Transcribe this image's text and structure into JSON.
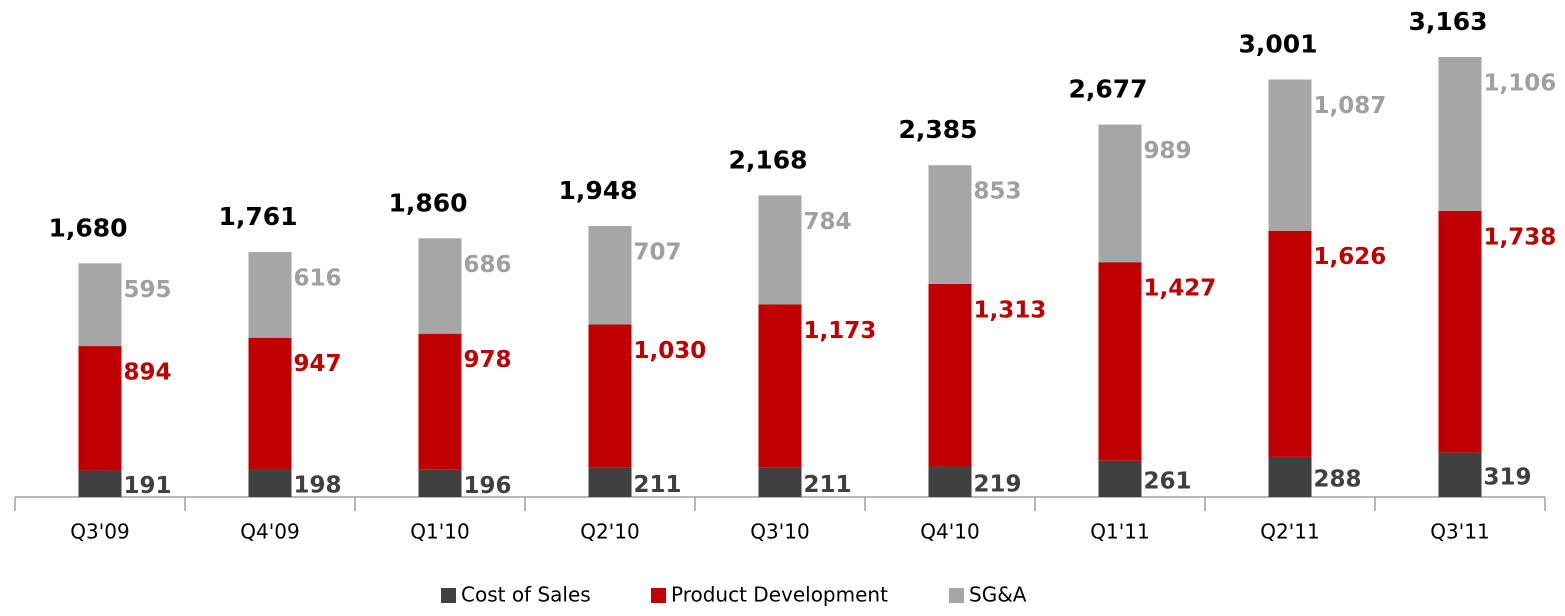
{
  "chart_data": {
    "type": "stacked_bar",
    "categories": [
      "Q3'09",
      "Q4'09",
      "Q1'10",
      "Q2'10",
      "Q3'10",
      "Q4'10",
      "Q1'11",
      "Q2'11",
      "Q3'11"
    ],
    "series": [
      {
        "name": "Cost of Sales",
        "color": "#404040",
        "values": [
          191,
          198,
          196,
          211,
          211,
          219,
          261,
          288,
          319
        ]
      },
      {
        "name": "Product Development",
        "color": "#c00000",
        "values": [
          894,
          947,
          978,
          1030,
          1173,
          1313,
          1427,
          1626,
          1738
        ],
        "value_labels": [
          "894",
          "947",
          "978",
          "1,030",
          "1,173",
          "1,313",
          "1,427",
          "1,626",
          "1,738"
        ]
      },
      {
        "name": "SG&A",
        "color": "#a6a6a6",
        "values": [
          595,
          616,
          686,
          707,
          784,
          853,
          989,
          1087,
          1106
        ],
        "value_labels": [
          "595",
          "616",
          "686",
          "707",
          "784",
          "853",
          "989",
          "1,087",
          "1,106"
        ]
      }
    ],
    "totals": [
      1680,
      1761,
      1860,
      1948,
      2168,
      2385,
      2677,
      3001,
      3163
    ],
    "total_labels": [
      "1,680",
      "1,761",
      "1,860",
      "1,948",
      "2,168",
      "2,385",
      "2,677",
      "3,001",
      "3,163"
    ]
  }
}
